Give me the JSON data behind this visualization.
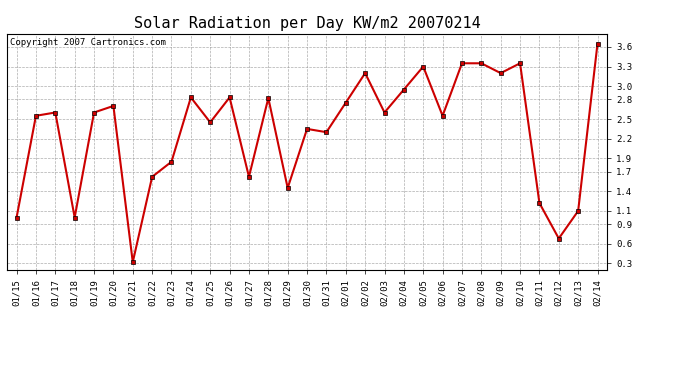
{
  "title": "Solar Radiation per Day KW/m2 20070214",
  "copyright_text": "Copyright 2007 Cartronics.com",
  "dates": [
    "01/15",
    "01/16",
    "01/17",
    "01/18",
    "01/19",
    "01/20",
    "01/21",
    "01/22",
    "01/23",
    "01/24",
    "01/25",
    "01/26",
    "01/27",
    "01/28",
    "01/29",
    "01/30",
    "01/31",
    "02/01",
    "02/02",
    "02/03",
    "02/04",
    "02/05",
    "02/06",
    "02/07",
    "02/08",
    "02/09",
    "02/10",
    "02/11",
    "02/12",
    "02/13",
    "02/14"
  ],
  "values": [
    1.0,
    2.55,
    2.6,
    1.0,
    2.6,
    2.7,
    0.32,
    1.62,
    1.85,
    2.83,
    2.45,
    2.83,
    1.62,
    2.82,
    1.45,
    2.35,
    2.3,
    2.75,
    3.2,
    2.6,
    2.95,
    3.3,
    2.55,
    3.35,
    3.35,
    3.2,
    3.35,
    1.22,
    0.68,
    1.1,
    3.65
  ],
  "line_color": "#cc0000",
  "marker": "s",
  "marker_size": 3,
  "line_width": 1.5,
  "ylim": [
    0.2,
    3.8
  ],
  "yticks": [
    0.3,
    0.6,
    0.9,
    1.1,
    1.4,
    1.7,
    1.9,
    2.2,
    2.5,
    2.8,
    3.0,
    3.3,
    3.6
  ],
  "background_color": "#ffffff",
  "grid_color": "#999999",
  "title_fontsize": 11,
  "copyright_fontsize": 6.5,
  "tick_fontsize": 6.5,
  "axis_label_color": "#000000",
  "fig_width": 6.9,
  "fig_height": 3.75,
  "dpi": 100
}
